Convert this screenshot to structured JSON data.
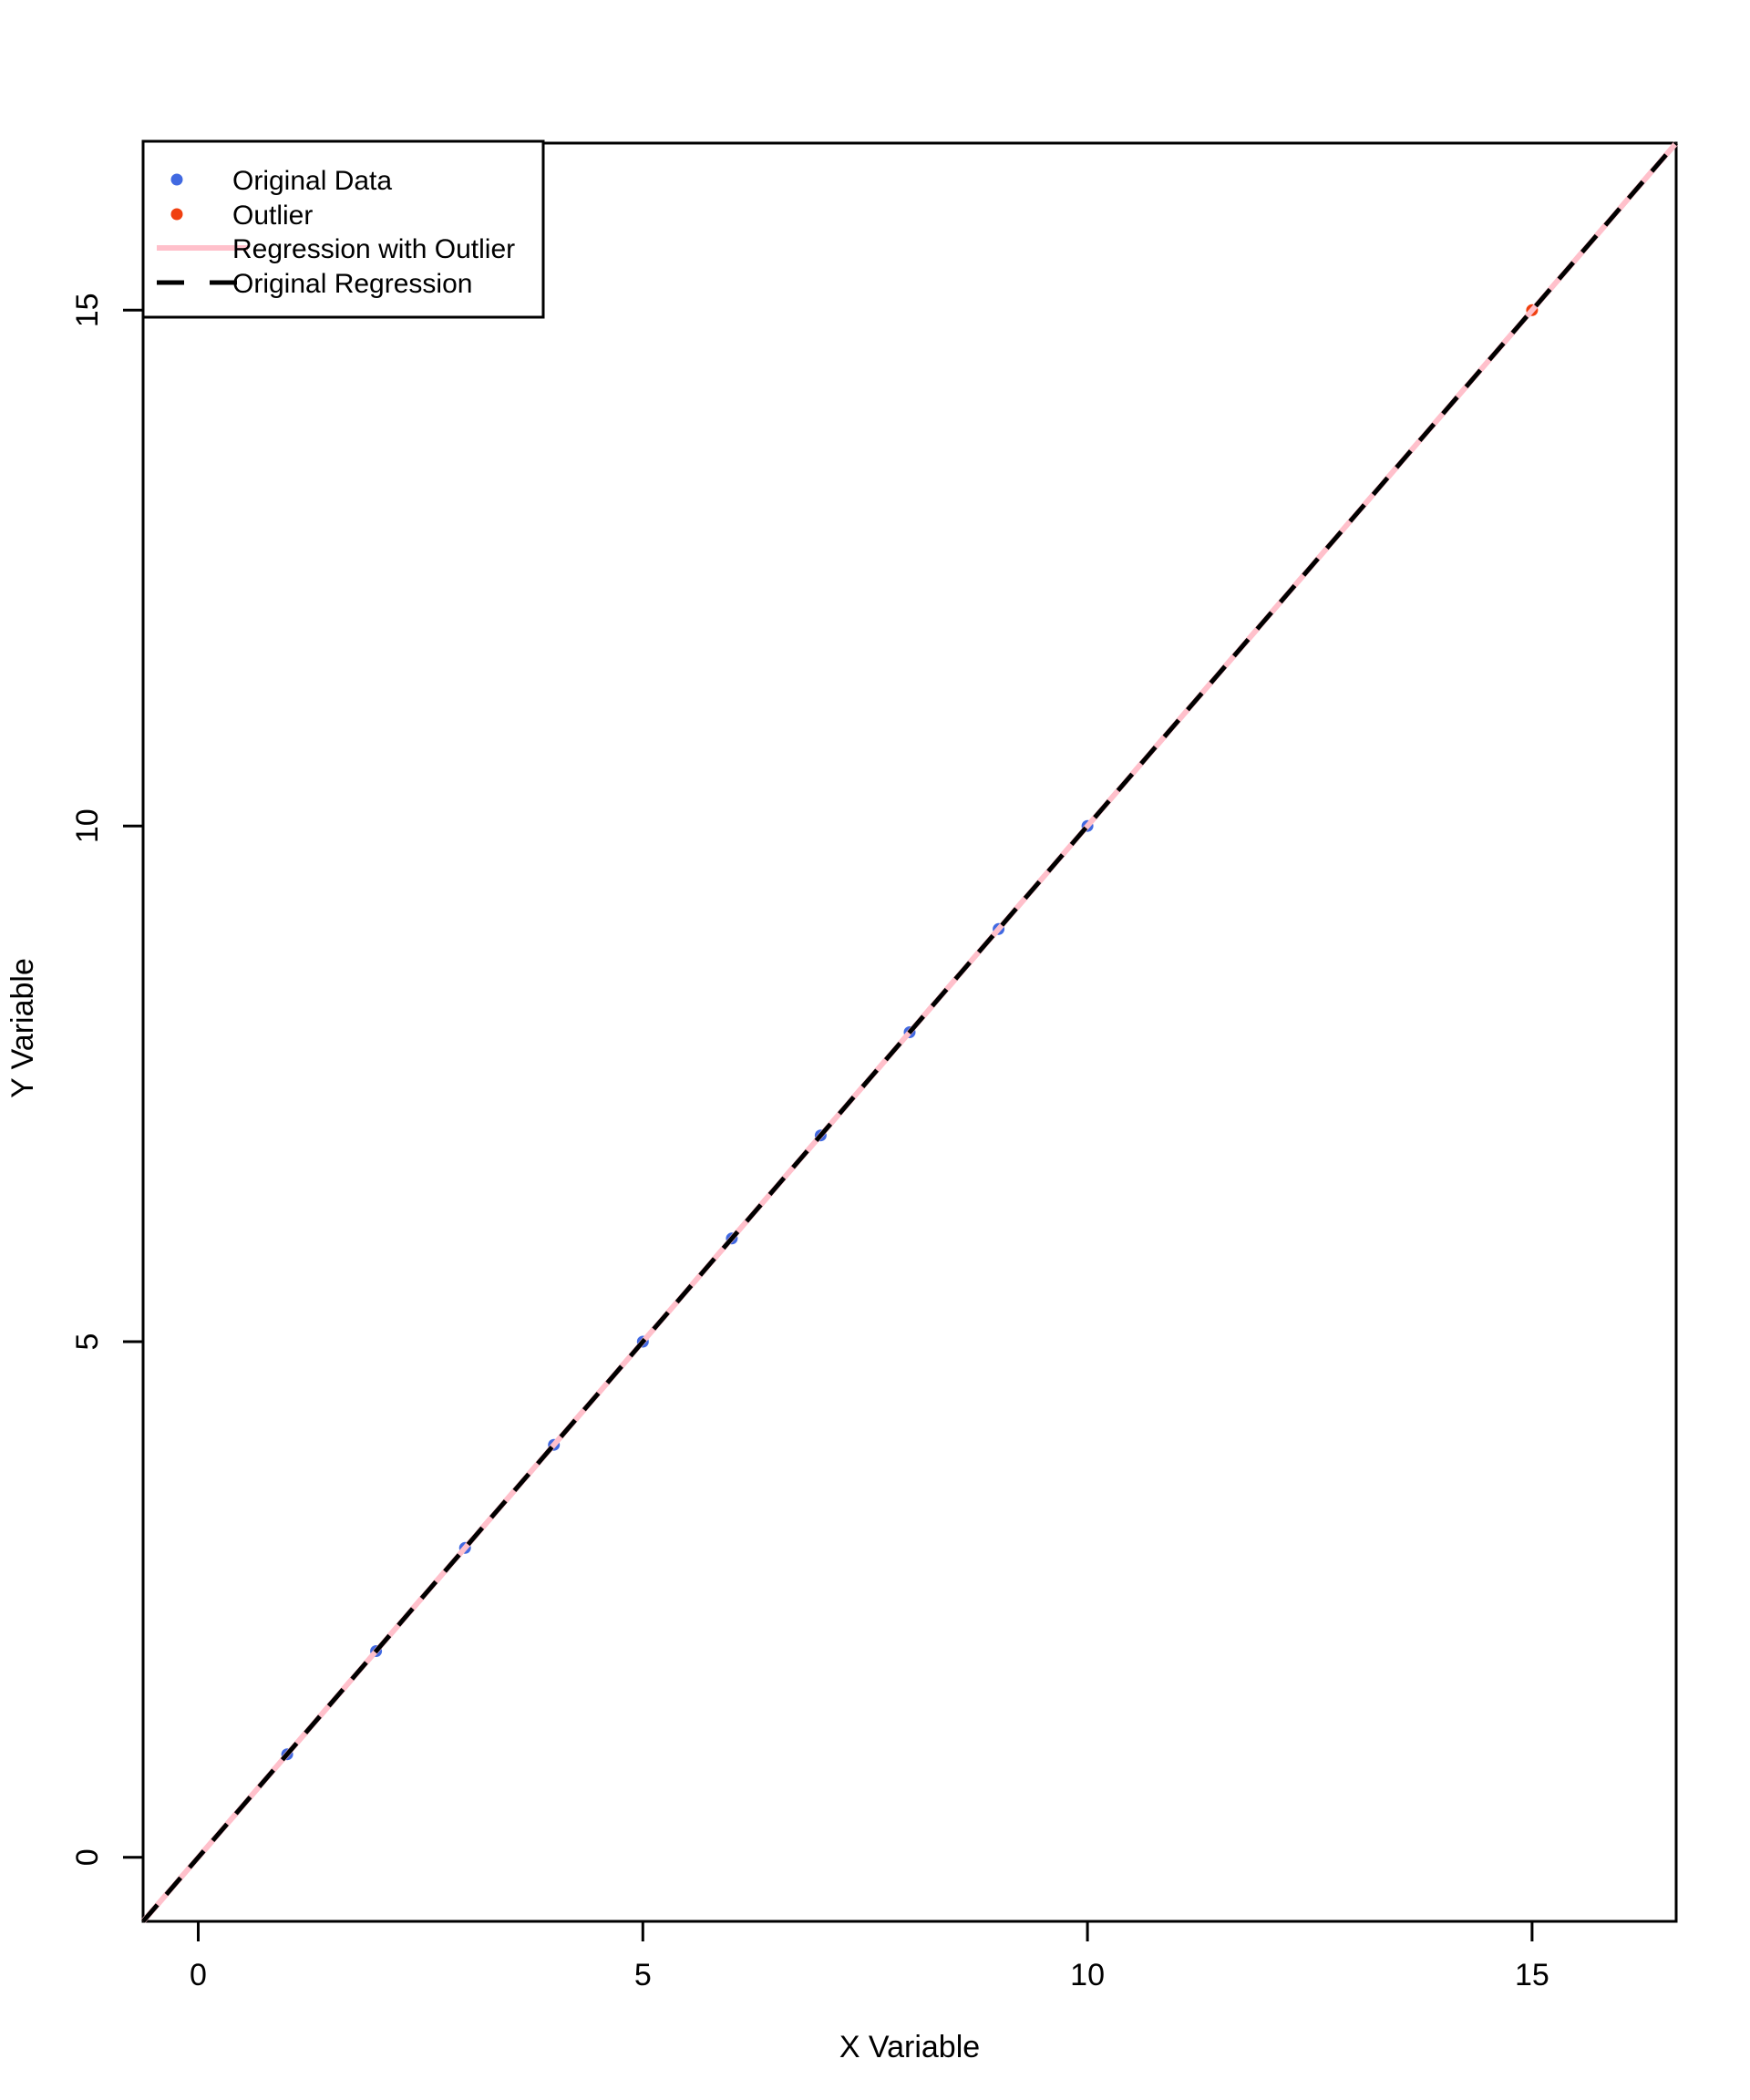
{
  "figure": {
    "background": "#FFFFFF"
  },
  "axes": {
    "x": {
      "title": "X Variable",
      "tick_labels": [
        "0",
        "5",
        "10",
        "15"
      ]
    },
    "y": {
      "title": "Y Variable",
      "tick_labels": [
        "0",
        "5",
        "10",
        "15"
      ]
    }
  },
  "legend": {
    "position": "topleft",
    "entries": [
      {
        "label": "Original Data",
        "marker": "point",
        "color": "#4169E1"
      },
      {
        "label": "Outlier",
        "marker": "point",
        "color": "#F04010"
      },
      {
        "label": "Regression with Outlier",
        "marker": "line-solid",
        "color": "#FFC0CB"
      },
      {
        "label": "Original Regression",
        "marker": "line-dashed",
        "color": "#000000"
      }
    ]
  },
  "chart_data": {
    "type": "scatter",
    "title": "",
    "xlabel": "X Variable",
    "ylabel": "Y Variable",
    "x_ticks": [
      0,
      5,
      10,
      15
    ],
    "y_ticks": [
      0,
      5,
      10,
      15
    ],
    "xlim": [
      -0.62,
      16.62
    ],
    "ylim": [
      -0.62,
      16.62
    ],
    "grid": false,
    "legend_position": "topleft",
    "series": [
      {
        "name": "Original Data",
        "type": "scatter",
        "color": "#4169E1",
        "points": [
          [
            1,
            1
          ],
          [
            2,
            2
          ],
          [
            3,
            3
          ],
          [
            4,
            4
          ],
          [
            5,
            5
          ],
          [
            6,
            6
          ],
          [
            7,
            7
          ],
          [
            8,
            8
          ],
          [
            9,
            9
          ],
          [
            10,
            10
          ]
        ]
      },
      {
        "name": "Outlier",
        "type": "scatter",
        "color": "#F04010",
        "points": [
          [
            15,
            15
          ]
        ]
      },
      {
        "name": "Regression with Outlier",
        "type": "line",
        "style": "solid",
        "color": "#FFC0CB",
        "slope": 1,
        "intercept": 0,
        "from": [
          -0.62,
          -0.62
        ],
        "to": [
          16.62,
          16.62
        ]
      },
      {
        "name": "Original Regression",
        "type": "line",
        "style": "dashed",
        "color": "#000000",
        "slope": 1,
        "intercept": 0,
        "from": [
          -0.62,
          -0.62
        ],
        "to": [
          16.62,
          16.62
        ]
      }
    ]
  }
}
